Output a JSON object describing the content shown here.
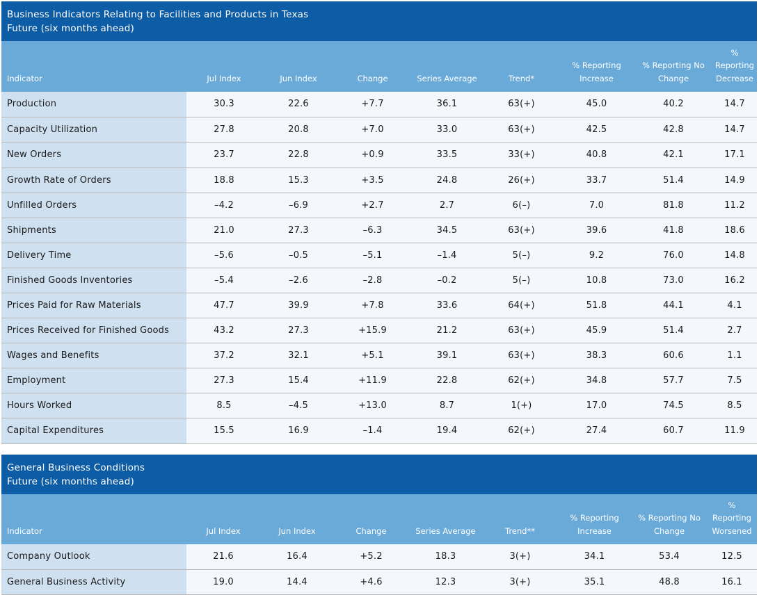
{
  "colors": {
    "title_bar": "#0d5ca6",
    "header": "#6aaad9",
    "label_cell": "#cfe0f0",
    "value_cell": "#f4f7fc"
  },
  "facilities": {
    "title": "Business Indicators Relating to Facilities and Products in Texas",
    "subtitle": "Future (six months ahead)",
    "headers": [
      "Indicator",
      "Jul Index",
      "Jun Index",
      "Change",
      "Series Average",
      "Trend*",
      "% Reporting Increase",
      "% Reporting No Change",
      "% Reporting Decrease"
    ],
    "rows": [
      [
        "Production",
        "30.3",
        "22.6",
        "+7.7",
        "36.1",
        "63(+)",
        "45.0",
        "40.2",
        "14.7"
      ],
      [
        "Capacity Utilization",
        "27.8",
        "20.8",
        "+7.0",
        "33.0",
        "63(+)",
        "42.5",
        "42.8",
        "14.7"
      ],
      [
        "New Orders",
        "23.7",
        "22.8",
        "+0.9",
        "33.5",
        "33(+)",
        "40.8",
        "42.1",
        "17.1"
      ],
      [
        "Growth Rate of Orders",
        "18.8",
        "15.3",
        "+3.5",
        "24.8",
        "26(+)",
        "33.7",
        "51.4",
        "14.9"
      ],
      [
        "Unfilled Orders",
        "–4.2",
        "–6.9",
        "+2.7",
        "2.7",
        "6(–)",
        "7.0",
        "81.8",
        "11.2"
      ],
      [
        "Shipments",
        "21.0",
        "27.3",
        "–6.3",
        "34.5",
        "63(+)",
        "39.6",
        "41.8",
        "18.6"
      ],
      [
        "Delivery Time",
        "–5.6",
        "–0.5",
        "–5.1",
        "–1.4",
        "5(–)",
        "9.2",
        "76.0",
        "14.8"
      ],
      [
        "Finished Goods Inventories",
        "–5.4",
        "–2.6",
        "–2.8",
        "–0.2",
        "5(–)",
        "10.8",
        "73.0",
        "16.2"
      ],
      [
        "Prices Paid for Raw Materials",
        "47.7",
        "39.9",
        "+7.8",
        "33.6",
        "64(+)",
        "51.8",
        "44.1",
        "4.1"
      ],
      [
        "Prices Received for Finished Goods",
        "43.2",
        "27.3",
        "+15.9",
        "21.2",
        "63(+)",
        "45.9",
        "51.4",
        "2.7"
      ],
      [
        "Wages and Benefits",
        "37.2",
        "32.1",
        "+5.1",
        "39.1",
        "63(+)",
        "38.3",
        "60.6",
        "1.1"
      ],
      [
        "Employment",
        "27.3",
        "15.4",
        "+11.9",
        "22.8",
        "62(+)",
        "34.8",
        "57.7",
        "7.5"
      ],
      [
        "Hours Worked",
        "8.5",
        "–4.5",
        "+13.0",
        "8.7",
        "1(+)",
        "17.0",
        "74.5",
        "8.5"
      ],
      [
        "Capital Expenditures",
        "15.5",
        "16.9",
        "–1.4",
        "19.4",
        "62(+)",
        "27.4",
        "60.7",
        "11.9"
      ]
    ]
  },
  "general": {
    "title": "General Business Conditions",
    "subtitle": "Future (six months ahead)",
    "headers": [
      "Indicator",
      "Jul Index",
      "Jun Index",
      "Change",
      "Series Average",
      "Trend**",
      "% Reporting Increase",
      "% Reporting No Change",
      "% Reporting Worsened"
    ],
    "rows": [
      [
        "Company Outlook",
        "21.6",
        "16.4",
        "+5.2",
        "18.3",
        "3(+)",
        "34.1",
        "53.4",
        "12.5"
      ],
      [
        "General Business Activity",
        "19.0",
        "14.4",
        "+4.6",
        "12.3",
        "3(+)",
        "35.1",
        "48.8",
        "16.1"
      ]
    ]
  }
}
